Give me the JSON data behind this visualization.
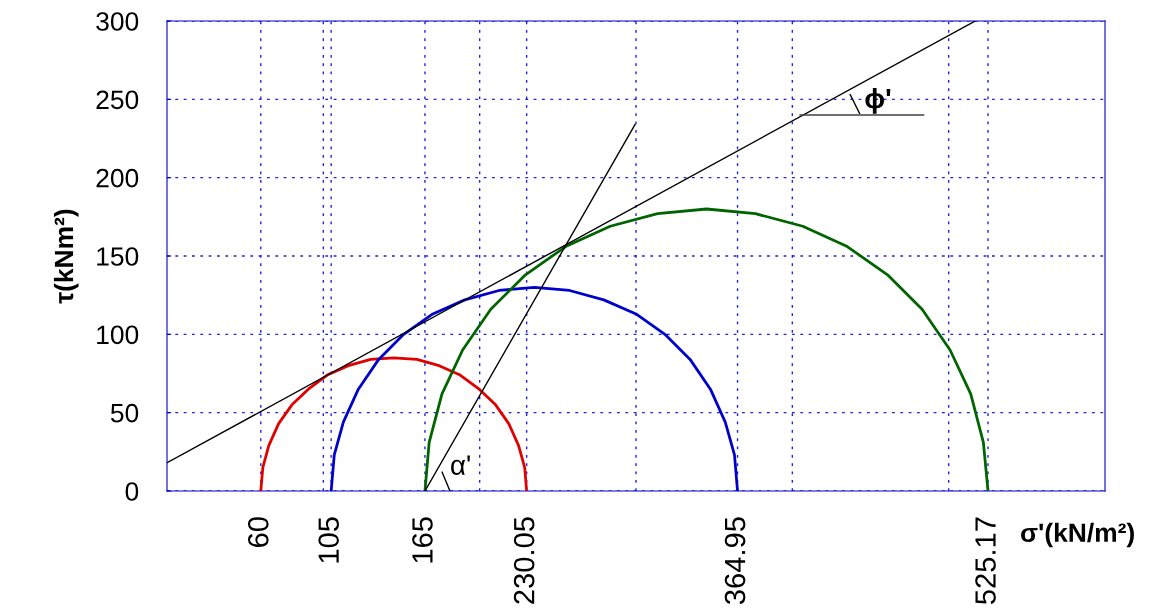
{
  "chart_data": {
    "type": "line",
    "xlabel": "σ'(kN/m²)",
    "ylabel": "τ(kNm²)",
    "xlim": [
      0,
      600
    ],
    "ylim": [
      0,
      300
    ],
    "xticks": [
      60,
      105,
      165,
      230.05,
      364.95,
      525.17,
      {
        "value": 100,
        "label": null
      },
      {
        "value": 200,
        "label": null
      },
      {
        "value": 300,
        "label": null
      },
      {
        "value": 400,
        "label": null
      },
      {
        "value": 500,
        "label": null
      }
    ],
    "yticks": [
      0,
      50,
      100,
      150,
      200,
      250,
      300
    ],
    "grid": true,
    "marker": "none",
    "line_style": "solid",
    "annotations": [
      "ϕ'",
      "α'"
    ],
    "series": [
      {
        "color": "#e00000",
        "x": [
          60,
          61.3,
          65.1,
          71.4,
          79.9,
          90.4,
          102.5,
          116,
          130.3,
          145,
          159.8,
          174.1,
          187.5,
          199.7,
          210.2,
          218.6,
          224.9,
          228.8,
          230.05
        ],
        "values": [
          0,
          15,
          29,
          43,
          55,
          65,
          74,
          80,
          84,
          85,
          84,
          80,
          74,
          65,
          55,
          43,
          29,
          15,
          0
        ]
      },
      {
        "color": "#0000cc",
        "x": [
          105,
          107,
          112.8,
          122.4,
          135.4,
          151.4,
          170,
          190.5,
          212.4,
          235,
          257.5,
          279.4,
          300,
          318.5,
          334.6,
          347.6,
          357.1,
          363,
          364.95
        ],
        "values": [
          0,
          23,
          44,
          65,
          84,
          100,
          113,
          122,
          128,
          130,
          128,
          122,
          113,
          100,
          84,
          65,
          44,
          23,
          0
        ]
      },
      {
        "color": "#006400",
        "x": [
          165,
          167.7,
          175.9,
          189.1,
          207.1,
          229.3,
          255,
          283.5,
          313.8,
          345.1,
          376.4,
          406.7,
          435.1,
          460.9,
          483,
          500.9,
          514.1,
          522.2,
          525.17
        ],
        "values": [
          0,
          31,
          62,
          90,
          116,
          138,
          156,
          169,
          177,
          180,
          177,
          169,
          156,
          138,
          116,
          90,
          62,
          31,
          0
        ]
      },
      {
        "color": "#000000",
        "x": [
          0,
          517
        ],
        "values": [
          18,
          300
        ]
      },
      {
        "color": "#000000",
        "x": [
          165,
          299.4
        ],
        "values": [
          0,
          234
        ]
      },
      {
        "color": "#404040",
        "x": [
          405,
          484
        ],
        "values": [
          240,
          240
        ]
      }
    ]
  }
}
